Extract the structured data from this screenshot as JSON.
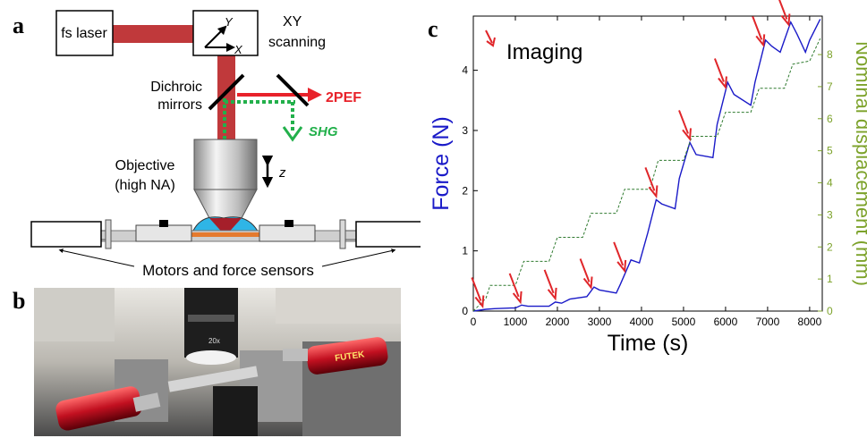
{
  "panels": {
    "a": "a",
    "b": "b",
    "c": "c"
  },
  "diagram": {
    "laser_label": "fs laser",
    "scan_y": "Y",
    "scan_x": "X",
    "scanning_label_1": "XY",
    "scanning_label_2": "scanning",
    "dichroic_label_1": "Dichroic",
    "dichroic_label_2": "mirrors",
    "pef_label": "2PEF",
    "shg_label": "SHG",
    "objective_label_1": "Objective",
    "objective_label_2": "(high NA)",
    "z_label": "z",
    "motors_label": "Motors and force sensors",
    "colors": {
      "beam": "#c0393b",
      "pef": "#e8222a",
      "shg": "#22b04b",
      "sample": "#e57a2e",
      "water": "#2fb5e6"
    }
  },
  "photo": {
    "sensor_brand": "FUTEK",
    "lens_text": "20x"
  },
  "chart_data": {
    "type": "line",
    "legend_label": "Imaging",
    "xlabel": "Time (s)",
    "ylabel": "Force (N)",
    "y2label": "Nominal displacement (mm)",
    "xlim": [
      0,
      8300
    ],
    "ylim": [
      0,
      4.9
    ],
    "y2lim": [
      0,
      9.2
    ],
    "xticks": [
      0,
      1000,
      2000,
      3000,
      4000,
      5000,
      6000,
      7000,
      8000
    ],
    "yticks": [
      0,
      1,
      2,
      3,
      4
    ],
    "y2ticks": [
      0,
      1,
      2,
      3,
      4,
      5,
      6,
      7,
      8
    ],
    "colors": {
      "force": "#1a1ac8",
      "displacement": "#2f7a2f",
      "axis2": "#7ca22a",
      "arrow": "#e0262a"
    },
    "series": [
      {
        "name": "Force",
        "axis": "left",
        "x": [
          0,
          300,
          500,
          900,
          1000,
          1150,
          1300,
          1800,
          1950,
          2100,
          2300,
          2700,
          2870,
          3000,
          3400,
          3500,
          3750,
          3950,
          4150,
          4350,
          4480,
          4800,
          4900,
          5150,
          5300,
          5700,
          5800,
          6050,
          6200,
          6600,
          6700,
          6950,
          7100,
          7300,
          7400,
          7550,
          7700,
          7900,
          8000,
          8250
        ],
        "y": [
          0.0,
          0.03,
          0.04,
          0.05,
          0.05,
          0.1,
          0.08,
          0.08,
          0.15,
          0.13,
          0.2,
          0.24,
          0.4,
          0.35,
          0.3,
          0.45,
          0.85,
          0.8,
          1.3,
          1.85,
          1.78,
          1.7,
          2.2,
          2.8,
          2.6,
          2.55,
          3.1,
          3.8,
          3.6,
          3.42,
          3.8,
          4.5,
          4.4,
          4.3,
          4.5,
          4.8,
          4.6,
          4.3,
          4.5,
          4.85
        ]
      },
      {
        "name": "Nominal displacement",
        "axis": "right",
        "x": [
          0,
          300,
          400,
          1000,
          1200,
          1800,
          2000,
          2600,
          2800,
          3400,
          3600,
          4200,
          4400,
          5000,
          5200,
          5800,
          6000,
          6600,
          6800,
          7400,
          7600,
          8000,
          8250
        ],
        "y": [
          0,
          0.4,
          0.8,
          0.8,
          1.55,
          1.55,
          2.3,
          2.3,
          3.05,
          3.05,
          3.8,
          3.8,
          4.7,
          4.7,
          5.45,
          5.45,
          6.2,
          6.2,
          6.95,
          6.95,
          7.7,
          7.8,
          8.5
        ]
      }
    ],
    "arrows_x": [
      220,
      1120,
      1950,
      2800,
      3600,
      4350,
      5150,
      6000,
      6900,
      7500
    ]
  }
}
